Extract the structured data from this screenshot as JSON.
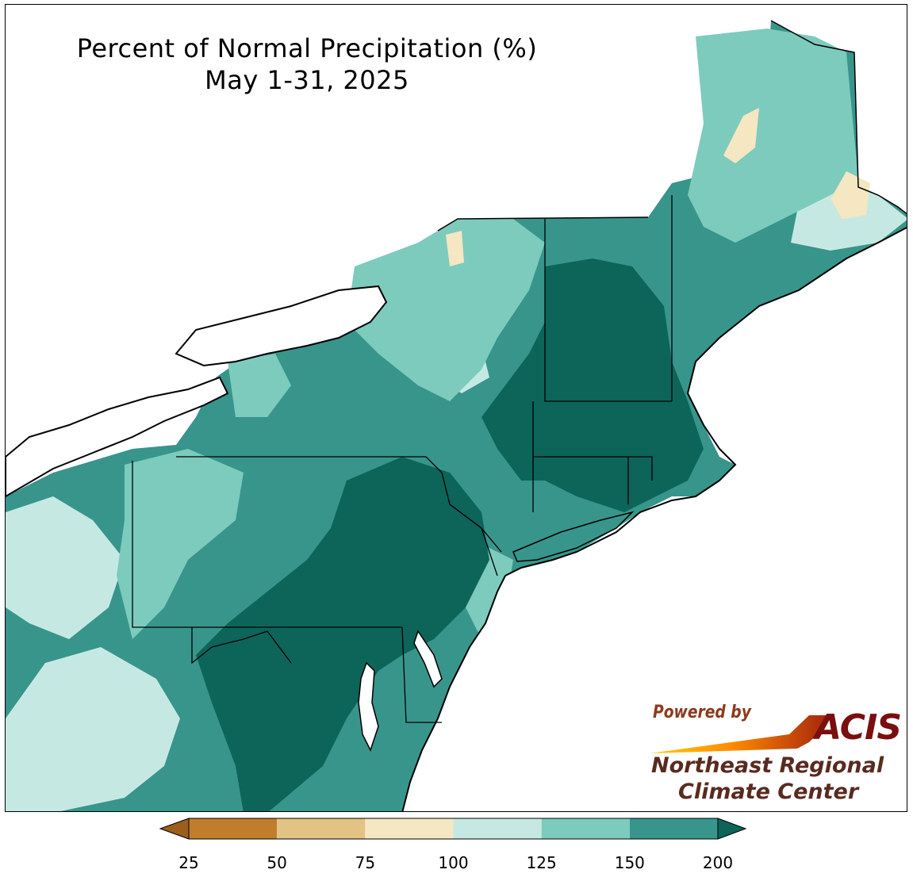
{
  "title": {
    "line1": "Percent of Normal Precipitation (%)",
    "line2": "May 1-31, 2025"
  },
  "logo": {
    "powered_by": "Powered by",
    "acis": "ACIS",
    "org_line1": "Northeast Regional",
    "org_line2": "Climate Center"
  },
  "legend": {
    "type": "colorbar",
    "extend": "both",
    "ticks": [
      "25",
      "50",
      "75",
      "100",
      "125",
      "150",
      "200"
    ],
    "bins": [
      {
        "from": 25,
        "to": 50,
        "color": "#c07e2c"
      },
      {
        "from": 50,
        "to": 75,
        "color": "#e2c384"
      },
      {
        "from": 75,
        "to": 100,
        "color": "#f5e7c2"
      },
      {
        "from": 100,
        "to": 125,
        "color": "#c5e9e2"
      },
      {
        "from": 125,
        "to": 150,
        "color": "#7dcbbd"
      },
      {
        "from": 150,
        "to": 200,
        "color": "#38958b"
      }
    ],
    "under_color": "#9a5f1a",
    "over_color": "#0d6459"
  },
  "map": {
    "region": "Northeastern United States",
    "colors": {
      "very_high": "#0d6459",
      "high": "#38958b",
      "above": "#7dcbbd",
      "near": "#c5e9e2",
      "below": "#f5e7c2",
      "low": "#e2c384",
      "lake": "#ffffff",
      "ocean": "#ffffff"
    }
  }
}
